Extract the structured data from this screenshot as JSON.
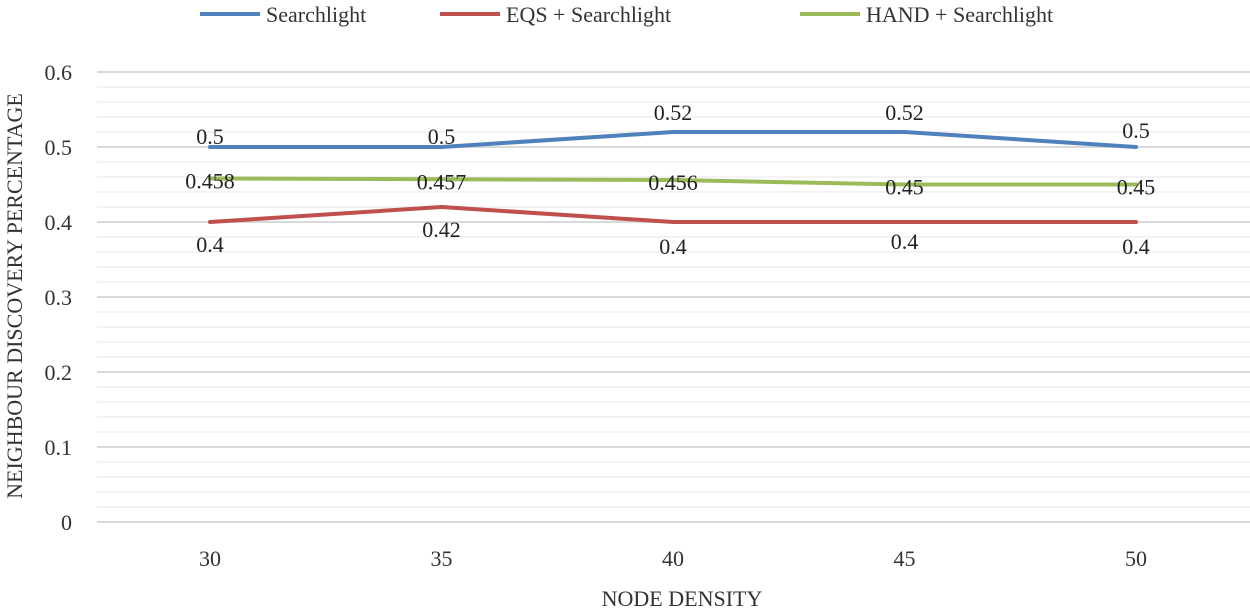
{
  "chart_data": {
    "type": "line",
    "title": "",
    "xlabel": "NODE DENSITY",
    "ylabel": "NEIGHBOUR DISCOVERY PERCENTAGE",
    "categories": [
      "30",
      "35",
      "40",
      "45",
      "50"
    ],
    "yticks": [
      "0",
      "0.1",
      "0.2",
      "0.3",
      "0.4",
      "0.5",
      "0.6"
    ],
    "ylim": [
      0,
      0.6
    ],
    "grid": true,
    "legend_position": "top",
    "series": [
      {
        "name": "Searchlight",
        "color": "#4F81BD",
        "values": [
          0.5,
          0.5,
          0.52,
          0.52,
          0.5
        ],
        "labels": [
          "0.5",
          "0.5",
          "0.52",
          "0.52",
          "0.5"
        ]
      },
      {
        "name": "EQS + Searchlight",
        "color": "#C0504D",
        "values": [
          0.4,
          0.42,
          0.4,
          0.4,
          0.4
        ],
        "labels": [
          "0.4",
          "0.42",
          "0.4",
          "0.4",
          "0.4"
        ]
      },
      {
        "name": "HAND + Searchlight",
        "color": "#9BBB59",
        "values": [
          0.458,
          0.457,
          0.456,
          0.45,
          0.45
        ],
        "labels": [
          "0.458",
          "0.457",
          "0.456",
          "0.45",
          "0.45"
        ]
      }
    ]
  }
}
